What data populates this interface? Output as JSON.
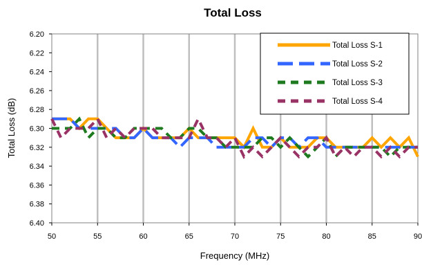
{
  "chart_data": {
    "type": "line",
    "title": "Total Loss",
    "xlabel": "Frequency (MHz)",
    "ylabel": "Total Loss (dB)",
    "xlim": [
      50,
      90
    ],
    "ylim": [
      6.2,
      6.4
    ],
    "y_inverted": true,
    "x_ticks": [
      50,
      55,
      60,
      65,
      70,
      75,
      80,
      85,
      90
    ],
    "x_tick_labels": [
      "50",
      "55",
      "60",
      "65",
      "70",
      "75",
      "80",
      "85",
      "90"
    ],
    "y_ticks": [
      6.2,
      6.22,
      6.24,
      6.26,
      6.28,
      6.3,
      6.32,
      6.34,
      6.36,
      6.38,
      6.4
    ],
    "y_tick_labels": [
      "6.20",
      "6.22",
      "6.24",
      "6.26",
      "6.28",
      "6.30",
      "6.32",
      "6.34",
      "6.36",
      "6.38",
      "6.40"
    ],
    "grid": "vertical",
    "legend_position": "top-right",
    "x": [
      50,
      51,
      52,
      53,
      54,
      55,
      56,
      57,
      58,
      59,
      60,
      61,
      62,
      63,
      64,
      65,
      66,
      67,
      68,
      69,
      70,
      71,
      72,
      73,
      74,
      75,
      76,
      77,
      78,
      79,
      80,
      81,
      82,
      83,
      84,
      85,
      86,
      87,
      88,
      89,
      90
    ],
    "series": [
      {
        "name": "Total Loss S-1",
        "color": "#FFA500",
        "dash": "solid",
        "values": [
          6.29,
          6.29,
          6.29,
          6.3,
          6.29,
          6.29,
          6.3,
          6.31,
          6.31,
          6.31,
          6.3,
          6.31,
          6.31,
          6.31,
          6.31,
          6.3,
          6.31,
          6.31,
          6.31,
          6.31,
          6.31,
          6.32,
          6.3,
          6.32,
          6.32,
          6.31,
          6.32,
          6.32,
          6.32,
          6.31,
          6.31,
          6.32,
          6.32,
          6.32,
          6.32,
          6.31,
          6.32,
          6.31,
          6.32,
          6.31,
          6.33
        ]
      },
      {
        "name": "Total Loss S-2",
        "color": "#3366FF",
        "dash": "long",
        "values": [
          6.29,
          6.29,
          6.29,
          6.3,
          6.3,
          6.3,
          6.3,
          6.3,
          6.31,
          6.31,
          6.3,
          6.31,
          6.31,
          6.31,
          6.32,
          6.31,
          6.31,
          6.31,
          6.32,
          6.32,
          6.32,
          6.32,
          6.31,
          6.31,
          6.32,
          6.31,
          6.31,
          6.32,
          6.31,
          6.31,
          6.32,
          6.32,
          6.32,
          6.32,
          6.32,
          6.32,
          6.32,
          6.32,
          6.32,
          6.32,
          6.32
        ]
      },
      {
        "name": "Total Loss S-3",
        "color": "#1E7A1E",
        "dash": "dashed",
        "values": [
          6.3,
          6.3,
          6.3,
          6.29,
          6.31,
          6.3,
          6.3,
          6.31,
          6.31,
          6.3,
          6.3,
          6.3,
          6.3,
          6.31,
          6.31,
          6.3,
          6.3,
          6.31,
          6.31,
          6.32,
          6.32,
          6.32,
          6.32,
          6.31,
          6.31,
          6.32,
          6.31,
          6.32,
          6.33,
          6.32,
          6.31,
          6.33,
          6.32,
          6.32,
          6.32,
          6.32,
          6.32,
          6.33,
          6.32,
          6.32,
          6.32
        ]
      },
      {
        "name": "Total Loss S-4",
        "color": "#993366",
        "dash": "dashed",
        "values": [
          6.29,
          6.31,
          6.3,
          6.3,
          6.3,
          6.29,
          6.31,
          6.3,
          6.31,
          6.3,
          6.3,
          6.3,
          6.31,
          6.31,
          6.31,
          6.31,
          6.29,
          6.31,
          6.31,
          6.32,
          6.31,
          6.33,
          6.32,
          6.33,
          6.32,
          6.31,
          6.32,
          6.33,
          6.32,
          6.32,
          6.31,
          6.33,
          6.32,
          6.33,
          6.32,
          6.32,
          6.33,
          6.32,
          6.33,
          6.32,
          6.32
        ]
      }
    ]
  }
}
